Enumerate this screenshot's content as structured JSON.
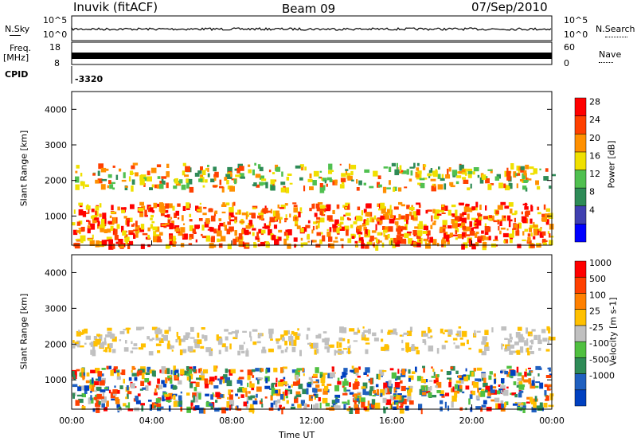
{
  "header": {
    "title": "Inuvik (fitACF)",
    "beam": "Beam 09",
    "date": "07/Sep/2010"
  },
  "strips": {
    "nsky_label": "N.Sky",
    "nsky_ticks": [
      "10^5",
      "10^0"
    ],
    "nsearch_label": "N.Search",
    "nsearch_ticks": [
      "10^5",
      "10^0"
    ],
    "freq_label_1": "Freq.",
    "freq_label_2": "[MHz]",
    "freq_ticks": [
      "18",
      "8"
    ],
    "nave_label": "Nave",
    "nave_ticks": [
      "60",
      "0"
    ],
    "cpid_label": "CPID",
    "cpid_value": "-3320"
  },
  "time_axis": {
    "label": "Time UT",
    "ticks": [
      "00:00",
      "04:00",
      "08:00",
      "12:00",
      "16:00",
      "20:00",
      "00:00"
    ]
  },
  "chart_data": [
    {
      "type": "heatmap",
      "ylabel": "Slant Range [km]",
      "yticks": [
        1000,
        2000,
        3000,
        4000
      ],
      "ylim": [
        180,
        4500
      ],
      "xlim_hours": [
        0,
        24
      ],
      "colorbar": {
        "label": "Power [dB]",
        "ticks": [
          "28",
          "24",
          "20",
          "16",
          "12",
          "8",
          "4"
        ],
        "colors": [
          "#0000ff",
          "#4040b0",
          "#2e8b57",
          "#50c050",
          "#f0e000",
          "#ff9000",
          "#ff4000",
          "#ff0000"
        ]
      },
      "bands": [
        {
          "name": "near-range echoes",
          "range_km": [
            200,
            1400
          ],
          "hours": [
            0,
            24
          ]
        },
        {
          "name": "far-range echoes",
          "range_km": [
            1800,
            2500
          ],
          "hours": [
            0,
            24
          ]
        }
      ]
    },
    {
      "type": "heatmap",
      "ylabel": "Slant Range [km]",
      "yticks": [
        1000,
        2000,
        3000,
        4000
      ],
      "ylim": [
        180,
        4500
      ],
      "xlim_hours": [
        0,
        24
      ],
      "colorbar": {
        "label": "Velocity [m s-1]",
        "ticks": [
          "1000",
          "500",
          "100",
          "25",
          "-25",
          "-100",
          "-500",
          "-1000"
        ],
        "colors": [
          "#0040c0",
          "#2060c0",
          "#2e8b57",
          "#50c040",
          "#c0c0c0",
          "#ffc000",
          "#ff8000",
          "#ff4000",
          "#ff0000"
        ]
      },
      "bands": [
        {
          "name": "near-range echoes",
          "range_km": [
            200,
            1400
          ],
          "hours": [
            0,
            24
          ]
        },
        {
          "name": "far-range echoes",
          "range_km": [
            1800,
            2500
          ],
          "hours": [
            0,
            24
          ]
        }
      ]
    }
  ]
}
